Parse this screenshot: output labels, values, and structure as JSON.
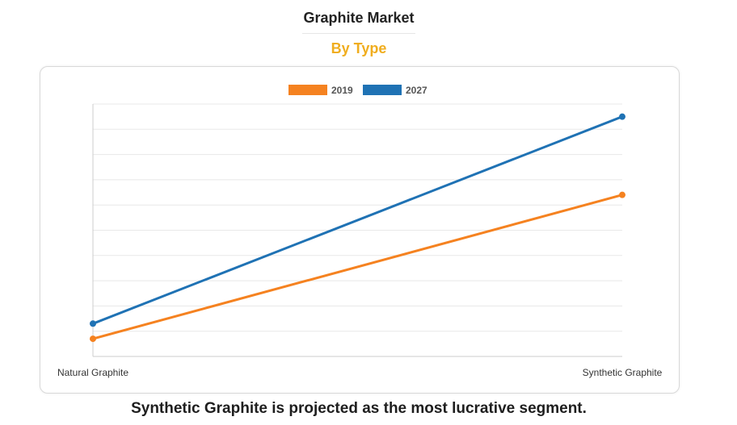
{
  "header": {
    "title": "Graphite Market",
    "subtitle": "By Type"
  },
  "footer": {
    "caption": "Synthetic Graphite is projected as the most lucrative segment."
  },
  "colors": {
    "subtitle": "#f0ad1e",
    "series_2019": "#f58220",
    "series_2027": "#1f72b4",
    "grid": "#e8e8e8",
    "axis": "#cccccc"
  },
  "chart_data": {
    "type": "line",
    "categories": [
      "Natural Graphite",
      "Synthetic Graphite"
    ],
    "series": [
      {
        "name": "2019",
        "values": [
          0.7,
          6.4
        ]
      },
      {
        "name": "2027",
        "values": [
          1.3,
          9.5
        ]
      }
    ],
    "ylim": [
      0,
      10
    ],
    "grid": true,
    "legend_position": "top-center",
    "y_tick_labels_shown": false
  }
}
